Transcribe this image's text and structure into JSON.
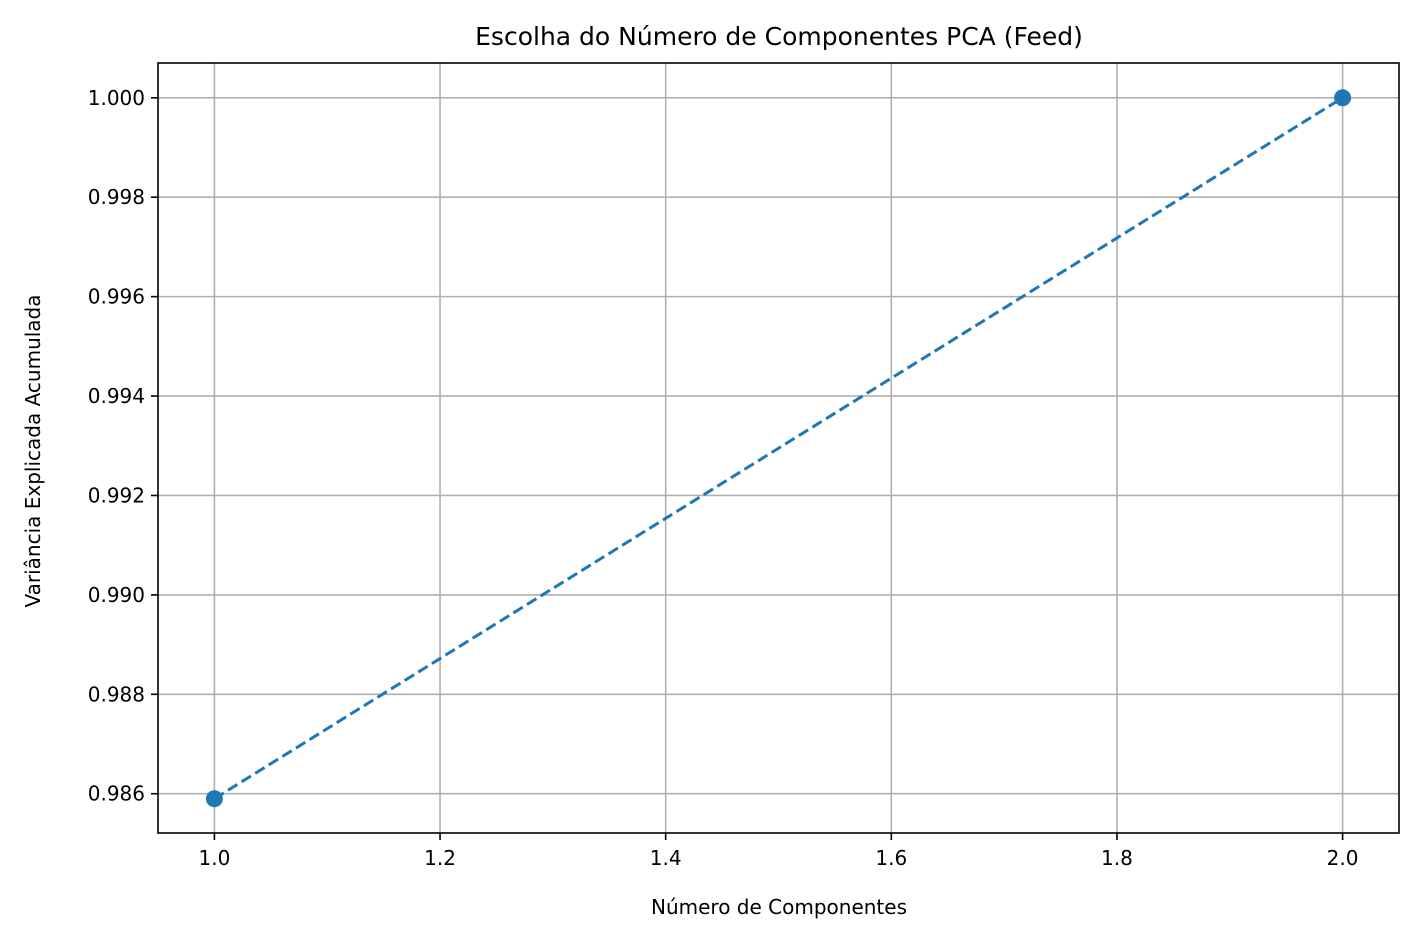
{
  "chart_data": {
    "type": "line",
    "title": "Escolha do Número de Componentes PCA (Feed)",
    "xlabel": "Número de Componentes",
    "ylabel": "Variância Explicada Acumulada",
    "x": [
      1,
      2
    ],
    "series": [
      {
        "values": [
          0.9859,
          1.0
        ],
        "color": "#1f77b4",
        "line_style": "dashed",
        "marker": "circle"
      }
    ],
    "xlim": [
      0.95,
      2.05
    ],
    "ylim": [
      0.98521,
      1.0007
    ],
    "xticks": [
      1.0,
      1.2,
      1.4,
      1.6,
      1.8,
      2.0
    ],
    "xtick_labels": [
      "1.0",
      "1.2",
      "1.4",
      "1.6",
      "1.8",
      "2.0"
    ],
    "yticks": [
      0.986,
      0.988,
      0.99,
      0.992,
      0.994,
      0.996,
      0.998,
      1.0
    ],
    "ytick_labels": [
      "0.986",
      "0.988",
      "0.990",
      "0.992",
      "0.994",
      "0.996",
      "0.998",
      "1.000"
    ],
    "grid": true,
    "legend": "none"
  }
}
